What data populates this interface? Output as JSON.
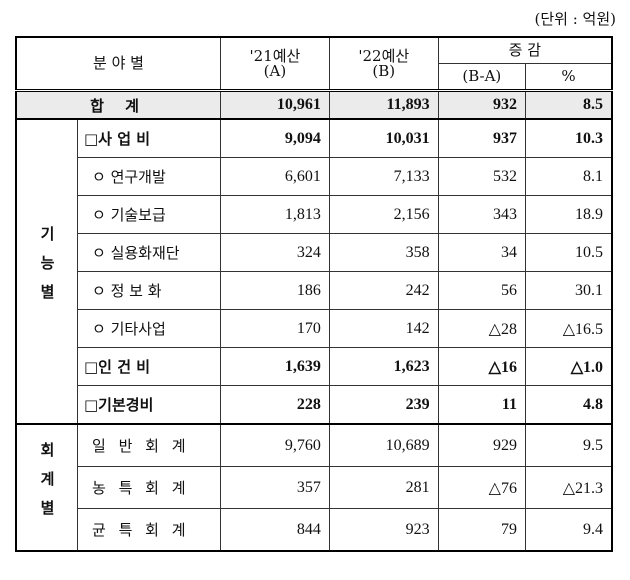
{
  "unit": "(단위 : 억원)",
  "header": {
    "category": "분 야 별",
    "col_a": "'21예산",
    "col_a_sub": "(A)",
    "col_b": "'22예산",
    "col_b_sub": "(B)",
    "change": "증 감",
    "change_diff": "(B-A)",
    "change_pct": "%"
  },
  "total": {
    "label": "합  계",
    "a": "10,961",
    "b": "11,893",
    "diff": "932",
    "pct": "8.5"
  },
  "group1": {
    "label": "기능별",
    "rows": [
      {
        "label": "□사 업 비",
        "a": "9,094",
        "b": "10,031",
        "diff": "937",
        "pct": "10.3",
        "bold": true
      },
      {
        "label": "ㅇ 연구개발",
        "a": "6,601",
        "b": "7,133",
        "diff": "532",
        "pct": "8.1"
      },
      {
        "label": "ㅇ 기술보급",
        "a": "1,813",
        "b": "2,156",
        "diff": "343",
        "pct": "18.9"
      },
      {
        "label": "ㅇ 실용화재단",
        "a": "324",
        "b": "358",
        "diff": "34",
        "pct": "10.5"
      },
      {
        "label": "ㅇ 정 보 화",
        "a": "186",
        "b": "242",
        "diff": "56",
        "pct": "30.1"
      },
      {
        "label": "ㅇ 기타사업",
        "a": "170",
        "b": "142",
        "diff": "△28",
        "pct": "△16.5"
      },
      {
        "label": "□인 건 비",
        "a": "1,639",
        "b": "1,623",
        "diff": "△16",
        "pct": "△1.0",
        "bold": true
      },
      {
        "label": "□기본경비",
        "a": "228",
        "b": "239",
        "diff": "11",
        "pct": "4.8",
        "bold": true
      }
    ]
  },
  "group2": {
    "label": "회계별",
    "rows": [
      {
        "label": "일 반 회 계",
        "a": "9,760",
        "b": "10,689",
        "diff": "929",
        "pct": "9.5"
      },
      {
        "label": "농 특 회 계",
        "a": "357",
        "b": "281",
        "diff": "△76",
        "pct": "△21.3"
      },
      {
        "label": "균 특 회 계",
        "a": "844",
        "b": "923",
        "diff": "79",
        "pct": "9.4"
      }
    ]
  }
}
